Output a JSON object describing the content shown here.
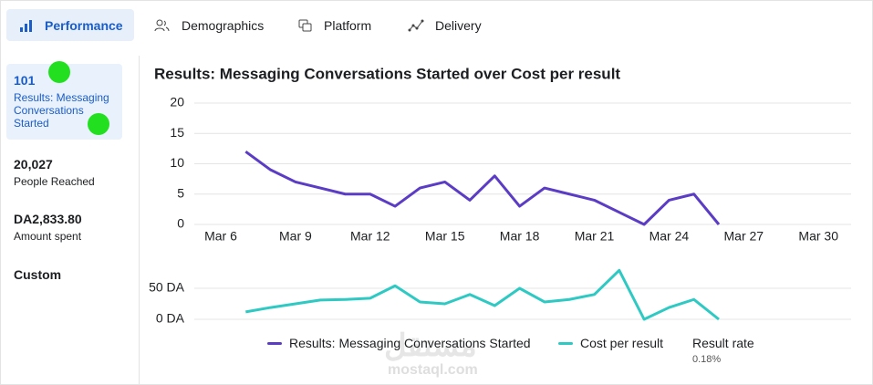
{
  "tabs": [
    "Performance",
    "Demographics",
    "Platform",
    "Delivery"
  ],
  "sidebar": {
    "metrics": [
      {
        "value": "101",
        "label": "Results: Messaging Conversations Started"
      },
      {
        "value": "20,027",
        "label": "People Reached"
      },
      {
        "value": "DA2,833.80",
        "label": "Amount spent"
      }
    ],
    "custom": "Custom"
  },
  "chart_data": [
    {
      "type": "line",
      "title": "Results: Messaging Conversations Started over Cost per result",
      "x": [
        "Mar 7",
        "Mar 8",
        "Mar 9",
        "Mar 10",
        "Mar 11",
        "Mar 12",
        "Mar 13",
        "Mar 14",
        "Mar 15",
        "Mar 16",
        "Mar 17",
        "Mar 18",
        "Mar 19",
        "Mar 20",
        "Mar 21",
        "Mar 22",
        "Mar 23",
        "Mar 24",
        "Mar 25",
        "Mar 26"
      ],
      "series": [
        {
          "name": "Results: Messaging Conversations Started",
          "color": "#5b3cc4",
          "values": [
            12,
            9,
            7,
            6,
            5,
            5,
            3,
            6,
            7,
            4,
            8,
            3,
            6,
            5,
            4,
            2,
            0,
            4,
            5,
            0
          ]
        }
      ],
      "ylim": [
        0,
        20
      ],
      "yticks": [
        0,
        5,
        10,
        15,
        20
      ],
      "xticks": [
        "Mar 6",
        "Mar 9",
        "Mar 12",
        "Mar 15",
        "Mar 18",
        "Mar 21",
        "Mar 24",
        "Mar 27",
        "Mar 30"
      ],
      "grid": true
    },
    {
      "type": "line",
      "x": [
        "Mar 7",
        "Mar 8",
        "Mar 9",
        "Mar 10",
        "Mar 11",
        "Mar 12",
        "Mar 13",
        "Mar 14",
        "Mar 15",
        "Mar 16",
        "Mar 17",
        "Mar 18",
        "Mar 19",
        "Mar 20",
        "Mar 21",
        "Mar 22",
        "Mar 23",
        "Mar 24",
        "Mar 25",
        "Mar 26"
      ],
      "series": [
        {
          "name": "Cost per result",
          "color": "#2ec9c3",
          "values": [
            12,
            19,
            25,
            31,
            32,
            34,
            54,
            28,
            25,
            40,
            22,
            50,
            28,
            32,
            40,
            79,
            0,
            19,
            32,
            0
          ]
        }
      ],
      "ylim": [
        0,
        80
      ],
      "yticks": [
        {
          "value": 0,
          "label": "0 DA"
        },
        {
          "value": 50,
          "label": "50 DA"
        }
      ],
      "grid": true
    }
  ],
  "result_rate": {
    "label": "Result rate",
    "value": "0.18%"
  },
  "watermark": {
    "arabic": "مستقل",
    "latin": "mostaql.com"
  }
}
